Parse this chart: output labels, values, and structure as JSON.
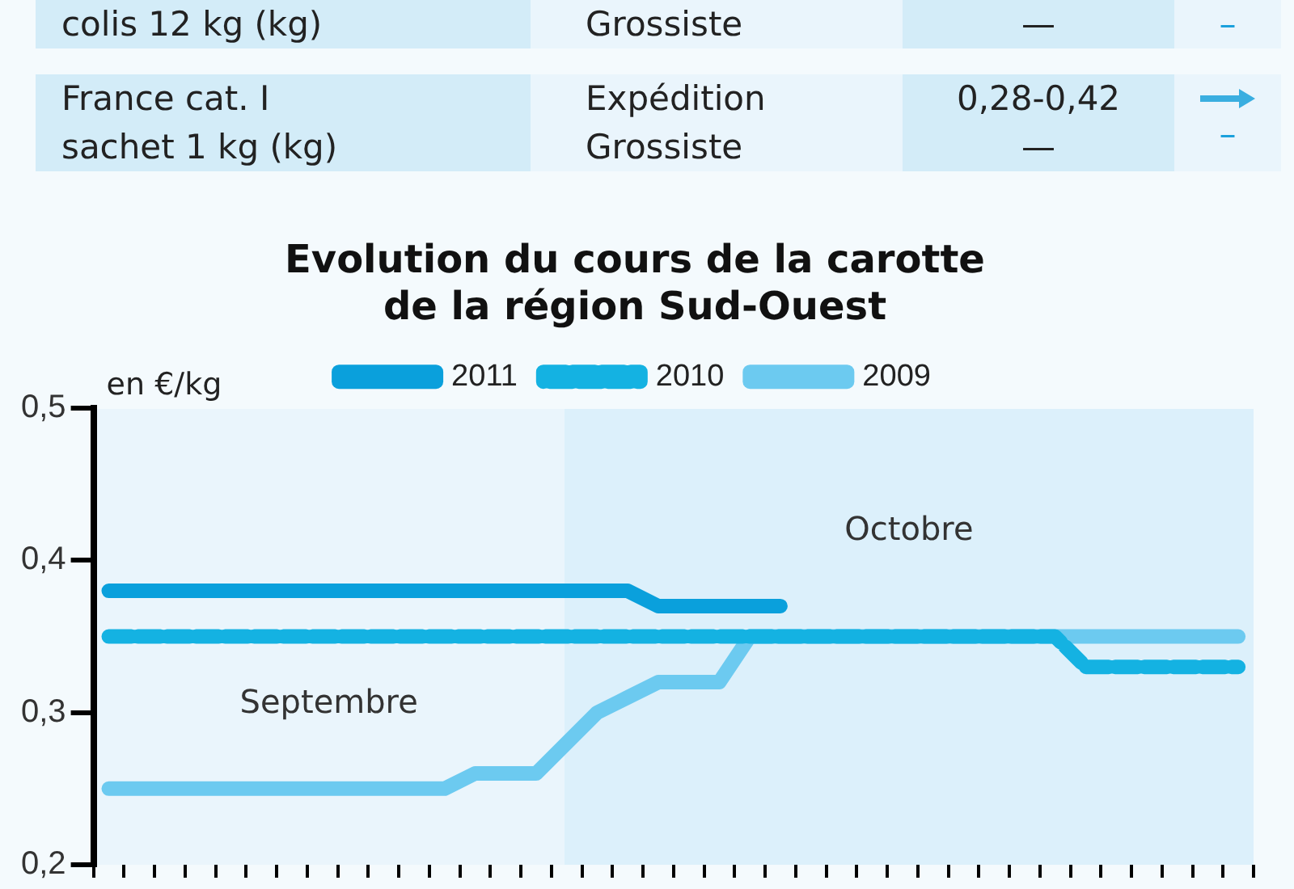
{
  "chart_data": {
    "type": "line",
    "title": "Evolution du cours de la carotte de la région Sud-Ouest",
    "ylabel": "en €/kg",
    "categories": [
      null,
      null,
      null,
      null,
      null,
      null,
      null,
      null,
      null,
      null,
      null,
      null,
      null,
      null,
      null,
      null,
      null,
      null,
      null,
      null,
      null,
      null,
      null,
      null,
      null,
      null,
      null,
      null,
      null,
      null,
      null,
      null,
      null,
      null,
      null,
      null,
      null,
      null
    ],
    "ylim": [
      0.2,
      0.5
    ],
    "yticks": [
      {
        "value": 0.2,
        "label": "0,2"
      },
      {
        "value": 0.3,
        "label": "0,3"
      },
      {
        "value": 0.4,
        "label": "0,4"
      },
      {
        "value": 0.5,
        "label": "0,5"
      }
    ],
    "tick_labels": "y",
    "grid": false,
    "legend": "top",
    "marker": "none",
    "series": [
      {
        "name": "2011",
        "color": "#0aa0dc",
        "line_style": "solid",
        "values": [
          0.38,
          0.38,
          0.38,
          0.38,
          0.38,
          0.38,
          0.38,
          0.38,
          0.38,
          0.38,
          0.38,
          0.38,
          0.38,
          0.38,
          0.38,
          0.38,
          0.38,
          0.38,
          0.37,
          0.37,
          0.37,
          0.37,
          0.37,
          null,
          null,
          null,
          null,
          null,
          null,
          null,
          null,
          null,
          null,
          null,
          null,
          null,
          null,
          null
        ]
      },
      {
        "name": "2010",
        "color": "#14b2e2",
        "line_style": "dashed",
        "values": [
          0.35,
          0.35,
          0.35,
          0.35,
          0.35,
          0.35,
          0.35,
          0.35,
          0.35,
          0.35,
          0.35,
          0.35,
          0.35,
          0.35,
          0.35,
          0.35,
          0.35,
          0.35,
          0.35,
          0.35,
          0.35,
          0.35,
          0.35,
          0.35,
          0.35,
          0.35,
          0.35,
          0.35,
          0.35,
          0.35,
          0.35,
          0.35,
          0.33,
          0.33,
          0.33,
          0.33,
          0.33,
          0.33
        ]
      },
      {
        "name": "2009",
        "color": "#6ccaf0",
        "line_style": "solid",
        "values": [
          0.25,
          0.25,
          0.25,
          0.25,
          0.25,
          0.25,
          0.25,
          0.25,
          0.25,
          0.25,
          0.25,
          0.25,
          0.26,
          0.26,
          0.26,
          0.28,
          0.3,
          0.31,
          0.32,
          0.32,
          0.32,
          0.35,
          0.35,
          0.35,
          0.35,
          0.35,
          0.35,
          0.35,
          0.35,
          0.35,
          0.35,
          0.35,
          0.35,
          0.35,
          0.35,
          0.35,
          0.35,
          0.35
        ]
      }
    ],
    "annotations": [
      "colis 12 kg (kg)",
      "Grossiste",
      "—",
      "–",
      "France cat. I\nsachet 1 kg (kg)",
      "Expédition\nGrossiste",
      "0,28-0,42\n—",
      "–",
      "Septembre",
      "Octobre"
    ]
  }
}
